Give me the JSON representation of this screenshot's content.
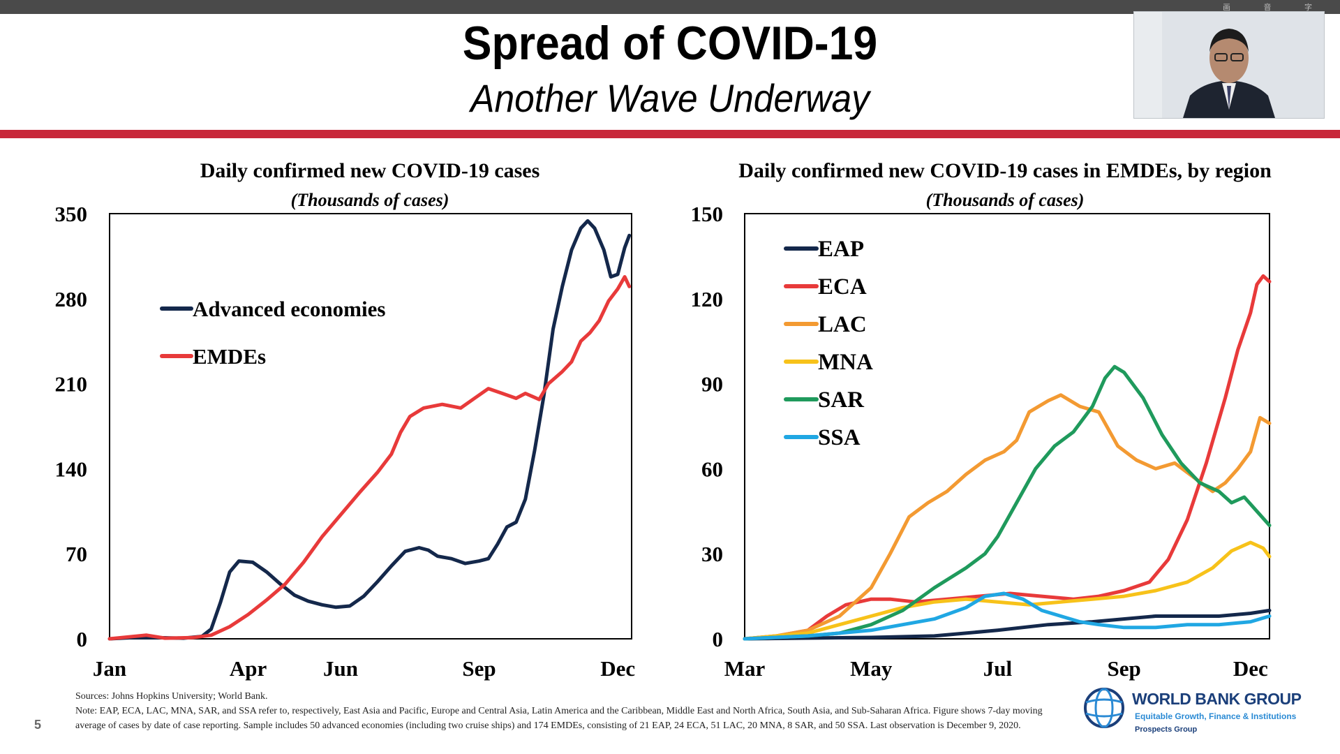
{
  "slide": {
    "title": "Spread of COVID-19",
    "subtitle": "Another Wave Underway",
    "number": "5",
    "toolbar_icons": "画 音 字",
    "sources": "Sources: Johns Hopkins University; World Bank.",
    "note": "Note: EAP, ECA, LAC, MNA, SAR, and SSA refer to, respectively, East Asia and Pacific, Europe and Central Asia, Latin America and the Caribbean, Middle East and North Africa, South Asia, and Sub-Saharan Africa. Figure shows 7-day moving average of cases by date of case reporting. Sample includes 50 advanced economies (including two cruise ships) and 174 EMDEs, consisting of 21 EAP, 24 ECA, 51 LAC, 20 MNA, 8 SAR, and 50 SSA. Last observation is December 9, 2020.",
    "logo": {
      "name": "WORLD BANK GROUP",
      "tagline": "Equitable Growth, Finance & Institutions",
      "unit": "Prospects Group"
    }
  },
  "colors": {
    "red_band": "#c8283a",
    "navy": "#14284b",
    "red": "#e83a3a",
    "orange": "#f39a32",
    "yellow": "#f7c21a",
    "green": "#1f9a5c",
    "blue": "#20a7e3"
  },
  "chart_data": [
    {
      "type": "line",
      "title": "Daily confirmed new COVID-19 cases",
      "subtitle": "(Thousands of cases)",
      "xlabel": "",
      "ylabel": "",
      "ylim": [
        0,
        350
      ],
      "yticks": [
        0,
        70,
        140,
        210,
        280,
        350
      ],
      "xlim": [
        0,
        11.3
      ],
      "xticks": [
        {
          "label": "Jan",
          "x": 0
        },
        {
          "label": "Apr",
          "x": 3
        },
        {
          "label": "Jun",
          "x": 5
        },
        {
          "label": "Sep",
          "x": 8
        },
        {
          "label": "Dec",
          "x": 11
        }
      ],
      "legend_position": "upper-left",
      "series": [
        {
          "name": "Advanced economies",
          "color": "#14284b",
          "points": [
            [
              0,
              0
            ],
            [
              0.5,
              1
            ],
            [
              1,
              1
            ],
            [
              1.6,
              0.5
            ],
            [
              2.0,
              2
            ],
            [
              2.2,
              8
            ],
            [
              2.4,
              30
            ],
            [
              2.6,
              55
            ],
            [
              2.8,
              64
            ],
            [
              3.1,
              63
            ],
            [
              3.4,
              55
            ],
            [
              3.7,
              45
            ],
            [
              4.0,
              36
            ],
            [
              4.3,
              31
            ],
            [
              4.6,
              28
            ],
            [
              4.9,
              26
            ],
            [
              5.2,
              27
            ],
            [
              5.5,
              35
            ],
            [
              5.8,
              47
            ],
            [
              6.1,
              60
            ],
            [
              6.4,
              72
            ],
            [
              6.7,
              75
            ],
            [
              6.9,
              73
            ],
            [
              7.1,
              68
            ],
            [
              7.4,
              66
            ],
            [
              7.7,
              62
            ],
            [
              8.0,
              64
            ],
            [
              8.2,
              66
            ],
            [
              8.4,
              78
            ],
            [
              8.6,
              92
            ],
            [
              8.8,
              96
            ],
            [
              9.0,
              115
            ],
            [
              9.2,
              155
            ],
            [
              9.4,
              200
            ],
            [
              9.6,
              255
            ],
            [
              9.8,
              290
            ],
            [
              10.0,
              320
            ],
            [
              10.2,
              338
            ],
            [
              10.35,
              344
            ],
            [
              10.5,
              338
            ],
            [
              10.7,
              320
            ],
            [
              10.85,
              298
            ],
            [
              11.0,
              300
            ],
            [
              11.15,
              322
            ],
            [
              11.25,
              332
            ]
          ]
        },
        {
          "name": "EMDEs",
          "color": "#e83a3a",
          "points": [
            [
              0,
              0
            ],
            [
              0.8,
              3
            ],
            [
              1.2,
              0.5
            ],
            [
              1.8,
              1
            ],
            [
              2.2,
              3
            ],
            [
              2.6,
              10
            ],
            [
              3.0,
              20
            ],
            [
              3.4,
              32
            ],
            [
              3.8,
              45
            ],
            [
              4.2,
              63
            ],
            [
              4.6,
              84
            ],
            [
              5.0,
              102
            ],
            [
              5.4,
              120
            ],
            [
              5.8,
              137
            ],
            [
              6.1,
              152
            ],
            [
              6.3,
              170
            ],
            [
              6.5,
              183
            ],
            [
              6.8,
              190
            ],
            [
              7.2,
              193
            ],
            [
              7.6,
              190
            ],
            [
              7.9,
              198
            ],
            [
              8.2,
              206
            ],
            [
              8.5,
              202
            ],
            [
              8.8,
              198
            ],
            [
              9.0,
              202
            ],
            [
              9.3,
              197
            ],
            [
              9.5,
              210
            ],
            [
              9.8,
              220
            ],
            [
              10.0,
              228
            ],
            [
              10.2,
              245
            ],
            [
              10.4,
              252
            ],
            [
              10.6,
              262
            ],
            [
              10.8,
              278
            ],
            [
              11.0,
              288
            ],
            [
              11.15,
              298
            ],
            [
              11.25,
              290
            ]
          ]
        }
      ]
    },
    {
      "type": "line",
      "title": "Daily confirmed new COVID-19 cases in EMDEs, by region",
      "subtitle": "(Thousands of cases)",
      "xlabel": "",
      "ylabel": "",
      "ylim": [
        0,
        150
      ],
      "yticks": [
        0,
        30,
        60,
        90,
        120,
        150
      ],
      "xlim": [
        0,
        8.3
      ],
      "xticks": [
        {
          "label": "Mar",
          "x": 0
        },
        {
          "label": "May",
          "x": 2
        },
        {
          "label": "Jul",
          "x": 4
        },
        {
          "label": "Sep",
          "x": 6
        },
        {
          "label": "Dec",
          "x": 8
        }
      ],
      "legend_position": "upper-left",
      "series": [
        {
          "name": "EAP",
          "color": "#14284b",
          "points": [
            [
              0,
              0
            ],
            [
              2,
              0.5
            ],
            [
              3,
              1
            ],
            [
              4,
              3
            ],
            [
              4.8,
              5
            ],
            [
              5.5,
              6
            ],
            [
              6.5,
              8
            ],
            [
              7.5,
              8
            ],
            [
              8.0,
              9
            ],
            [
              8.3,
              10
            ]
          ]
        },
        {
          "name": "ECA",
          "color": "#e83a3a",
          "points": [
            [
              0,
              0
            ],
            [
              0.5,
              1
            ],
            [
              1.0,
              3
            ],
            [
              1.3,
              8
            ],
            [
              1.6,
              12
            ],
            [
              2.0,
              14
            ],
            [
              2.3,
              14
            ],
            [
              2.7,
              13
            ],
            [
              3.2,
              14
            ],
            [
              3.7,
              15
            ],
            [
              4.2,
              16
            ],
            [
              4.7,
              15
            ],
            [
              5.2,
              14
            ],
            [
              5.6,
              15
            ],
            [
              6.0,
              17
            ],
            [
              6.4,
              20
            ],
            [
              6.7,
              28
            ],
            [
              7.0,
              42
            ],
            [
              7.3,
              62
            ],
            [
              7.6,
              85
            ],
            [
              7.8,
              102
            ],
            [
              8.0,
              115
            ],
            [
              8.1,
              125
            ],
            [
              8.2,
              128
            ],
            [
              8.3,
              126
            ]
          ]
        },
        {
          "name": "LAC",
          "color": "#f39a32",
          "points": [
            [
              0,
              0
            ],
            [
              0.5,
              1
            ],
            [
              1.0,
              3
            ],
            [
              1.5,
              8
            ],
            [
              2.0,
              18
            ],
            [
              2.3,
              30
            ],
            [
              2.6,
              43
            ],
            [
              2.9,
              48
            ],
            [
              3.2,
              52
            ],
            [
              3.5,
              58
            ],
            [
              3.8,
              63
            ],
            [
              4.1,
              66
            ],
            [
              4.3,
              70
            ],
            [
              4.5,
              80
            ],
            [
              4.8,
              84
            ],
            [
              5.0,
              86
            ],
            [
              5.3,
              82
            ],
            [
              5.6,
              80
            ],
            [
              5.9,
              68
            ],
            [
              6.2,
              63
            ],
            [
              6.5,
              60
            ],
            [
              6.8,
              62
            ],
            [
              7.1,
              57
            ],
            [
              7.4,
              52
            ],
            [
              7.6,
              55
            ],
            [
              7.8,
              60
            ],
            [
              8.0,
              66
            ],
            [
              8.15,
              78
            ],
            [
              8.3,
              76
            ]
          ]
        },
        {
          "name": "MNA",
          "color": "#f7c21a",
          "points": [
            [
              0,
              0
            ],
            [
              1.0,
              2
            ],
            [
              1.5,
              5
            ],
            [
              2.0,
              8
            ],
            [
              2.5,
              11
            ],
            [
              3.0,
              13
            ],
            [
              3.5,
              14
            ],
            [
              4.0,
              13
            ],
            [
              4.5,
              12
            ],
            [
              5.0,
              13
            ],
            [
              5.5,
              14
            ],
            [
              6.0,
              15
            ],
            [
              6.5,
              17
            ],
            [
              7.0,
              20
            ],
            [
              7.4,
              25
            ],
            [
              7.7,
              31
            ],
            [
              8.0,
              34
            ],
            [
              8.2,
              32
            ],
            [
              8.3,
              29
            ]
          ]
        },
        {
          "name": "SAR",
          "color": "#1f9a5c",
          "points": [
            [
              0,
              0
            ],
            [
              1.0,
              1
            ],
            [
              1.5,
              2
            ],
            [
              2.0,
              5
            ],
            [
              2.5,
              10
            ],
            [
              3.0,
              18
            ],
            [
              3.5,
              25
            ],
            [
              3.8,
              30
            ],
            [
              4.0,
              36
            ],
            [
              4.3,
              48
            ],
            [
              4.6,
              60
            ],
            [
              4.9,
              68
            ],
            [
              5.2,
              73
            ],
            [
              5.5,
              82
            ],
            [
              5.7,
              92
            ],
            [
              5.85,
              96
            ],
            [
              6.0,
              94
            ],
            [
              6.3,
              85
            ],
            [
              6.6,
              72
            ],
            [
              6.9,
              62
            ],
            [
              7.2,
              55
            ],
            [
              7.5,
              52
            ],
            [
              7.7,
              48
            ],
            [
              7.9,
              50
            ],
            [
              8.1,
              45
            ],
            [
              8.3,
              40
            ]
          ]
        },
        {
          "name": "SSA",
          "color": "#20a7e3",
          "points": [
            [
              0,
              0
            ],
            [
              1.0,
              1
            ],
            [
              1.5,
              2
            ],
            [
              2.0,
              3
            ],
            [
              2.5,
              5
            ],
            [
              3.0,
              7
            ],
            [
              3.5,
              11
            ],
            [
              3.8,
              15
            ],
            [
              4.1,
              16
            ],
            [
              4.4,
              14
            ],
            [
              4.7,
              10
            ],
            [
              5.0,
              8
            ],
            [
              5.3,
              6
            ],
            [
              5.6,
              5
            ],
            [
              6.0,
              4
            ],
            [
              6.5,
              4
            ],
            [
              7.0,
              5
            ],
            [
              7.5,
              5
            ],
            [
              8.0,
              6
            ],
            [
              8.3,
              8
            ]
          ]
        }
      ]
    }
  ]
}
